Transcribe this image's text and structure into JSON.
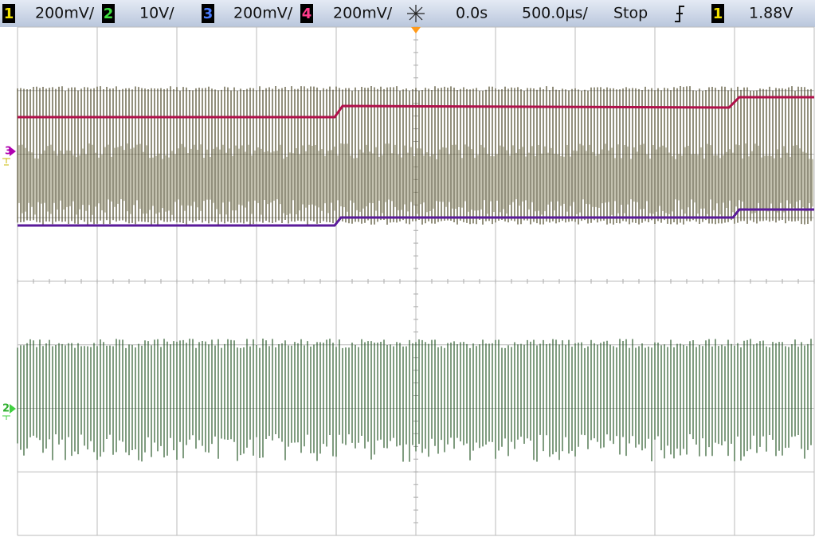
{
  "header": {
    "channels": [
      {
        "number": "1",
        "scale": "200mV/"
      },
      {
        "number": "2",
        "scale": "10V/"
      },
      {
        "number": "3",
        "scale": "200mV/"
      },
      {
        "number": "4",
        "scale": "200mV/"
      }
    ],
    "time_offset": "0.0s",
    "timebase": "500.0µs/",
    "run_state": "Stop",
    "trigger_source": "1",
    "trigger_level": "1.88V"
  },
  "markers": {
    "channel_3": "3",
    "channel_2": "2"
  }
}
